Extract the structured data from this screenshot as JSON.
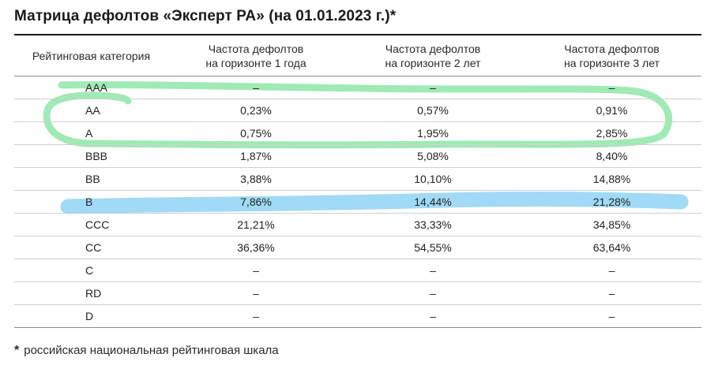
{
  "title": "Матрица дефолтов «Эксперт РА» (на 01.01.2023 г.)*",
  "table": {
    "headers": [
      [
        "Рейтинговая категория"
      ],
      [
        "Частота дефолтов",
        "на горизонте 1 года"
      ],
      [
        "Частота дефолтов",
        "на горизонте 2 лет"
      ],
      [
        "Частота дефолтов",
        "на горизонте 3 лет"
      ]
    ],
    "rows": [
      [
        "AAA",
        "–",
        "–",
        "–"
      ],
      [
        "AA",
        "0,23%",
        "0,57%",
        "0,91%"
      ],
      [
        "A",
        "0,75%",
        "1,95%",
        "2,85%"
      ],
      [
        "BBB",
        "1,87%",
        "5,08%",
        "8,40%"
      ],
      [
        "BB",
        "3,88%",
        "10,10%",
        "14,88%"
      ],
      [
        "B",
        "7,86%",
        "14,44%",
        "21,28%"
      ],
      [
        "CCC",
        "21,21%",
        "33,33%",
        "34,85%"
      ],
      [
        "CC",
        "36,36%",
        "54,55%",
        "63,64%"
      ],
      [
        "C",
        "–",
        "–",
        "–"
      ],
      [
        "RD",
        "–",
        "–",
        "–"
      ],
      [
        "D",
        "–",
        "–",
        "–"
      ]
    ]
  },
  "footnote": {
    "marker": "*",
    "text": "российская национальная рейтинговая шкала"
  },
  "annotations": {
    "green_loop_color": "#8ee6a8",
    "blue_highlight_color": "#8fd3f5"
  }
}
